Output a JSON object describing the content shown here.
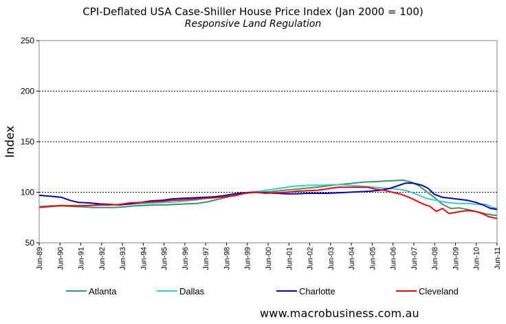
{
  "chart_data": {
    "type": "line",
    "title": "CPI-Deflated USA Case-Shiller House Price Index (Jan 2000 = 100)",
    "subtitle": "Responsive Land Regulation",
    "ylabel": "Index",
    "xlabel": "",
    "ylim": [
      50,
      250
    ],
    "yticks": [
      50,
      100,
      150,
      200,
      250
    ],
    "xlim": [
      1989.417,
      2011.417
    ],
    "xtick_labels": [
      "Jun-89",
      "Jun-90",
      "Jun-91",
      "Jun-92",
      "Jun-93",
      "Jun-94",
      "Jun-95",
      "Jun-96",
      "Jun-97",
      "Jun-98",
      "Jun-99",
      "Jun-00",
      "Jun-01",
      "Jun-02",
      "Jun-03",
      "Jun-04",
      "Jun-05",
      "Jun-06",
      "Jun-07",
      "Jun-08",
      "Jun-09",
      "Jun-10",
      "Jun-11"
    ],
    "grid": "horizontal dotted at 100, 150, 200",
    "legend_position": "bottom",
    "series": [
      {
        "name": "Atlanta",
        "color": "#339966",
        "points": [
          [
            1989.42,
            86
          ],
          [
            1990.0,
            86.5
          ],
          [
            1990.5,
            86.5
          ],
          [
            1991.0,
            86
          ],
          [
            1991.5,
            85.5
          ],
          [
            1992.0,
            85
          ],
          [
            1992.5,
            85
          ],
          [
            1993.0,
            85
          ],
          [
            1993.5,
            85.5
          ],
          [
            1994.0,
            86.5
          ],
          [
            1994.5,
            87
          ],
          [
            1995.0,
            87.5
          ],
          [
            1995.5,
            87.5
          ],
          [
            1996.0,
            88
          ],
          [
            1996.5,
            88.5
          ],
          [
            1997.0,
            89
          ],
          [
            1997.5,
            90.5
          ],
          [
            1998.0,
            93
          ],
          [
            1998.5,
            95.5
          ],
          [
            1999.0,
            98
          ],
          [
            1999.5,
            99.5
          ],
          [
            2000.0,
            100
          ],
          [
            2000.5,
            100.5
          ],
          [
            2001.0,
            101.5
          ],
          [
            2001.5,
            102.5
          ],
          [
            2002.0,
            103.5
          ],
          [
            2002.5,
            104.5
          ],
          [
            2003.0,
            105.5
          ],
          [
            2003.5,
            107
          ],
          [
            2004.0,
            108
          ],
          [
            2004.5,
            109
          ],
          [
            2005.0,
            110
          ],
          [
            2005.5,
            110.5
          ],
          [
            2006.0,
            111
          ],
          [
            2006.5,
            111.5
          ],
          [
            2006.9,
            112
          ],
          [
            2007.3,
            110
          ],
          [
            2007.7,
            106
          ],
          [
            2008.0,
            101
          ],
          [
            2008.4,
            95
          ],
          [
            2008.8,
            88
          ],
          [
            2009.2,
            84
          ],
          [
            2009.6,
            84.5
          ],
          [
            2010.0,
            83
          ],
          [
            2010.4,
            81
          ],
          [
            2010.8,
            79
          ],
          [
            2011.2,
            77.5
          ],
          [
            2011.42,
            77
          ]
        ]
      },
      {
        "name": "Dallas",
        "color": "#33cccc",
        "points": [
          [
            1989.42,
            85.5
          ],
          [
            1990.0,
            86
          ],
          [
            1990.5,
            86.5
          ],
          [
            1991.0,
            87
          ],
          [
            1991.5,
            86.5
          ],
          [
            1992.0,
            87
          ],
          [
            1992.5,
            87.5
          ],
          [
            1993.0,
            87.5
          ],
          [
            1993.5,
            88
          ],
          [
            1994.0,
            88.5
          ],
          [
            1994.5,
            89
          ],
          [
            1995.0,
            89.5
          ],
          [
            1995.5,
            90
          ],
          [
            1996.0,
            90.5
          ],
          [
            1996.5,
            91.5
          ],
          [
            1997.0,
            92.5
          ],
          [
            1997.5,
            94
          ],
          [
            1998.0,
            96
          ],
          [
            1998.5,
            97.5
          ],
          [
            1999.0,
            99
          ],
          [
            1999.5,
            100
          ],
          [
            2000.0,
            101
          ],
          [
            2000.5,
            102.5
          ],
          [
            2001.0,
            104
          ],
          [
            2001.5,
            105.5
          ],
          [
            2002.0,
            106.5
          ],
          [
            2002.5,
            107
          ],
          [
            2003.0,
            107
          ],
          [
            2003.5,
            107.5
          ],
          [
            2004.0,
            107.5
          ],
          [
            2004.5,
            106.5
          ],
          [
            2005.0,
            106
          ],
          [
            2005.5,
            105
          ],
          [
            2006.0,
            104
          ],
          [
            2006.5,
            103.5
          ],
          [
            2007.0,
            102
          ],
          [
            2007.5,
            98.5
          ],
          [
            2008.0,
            94
          ],
          [
            2008.5,
            92
          ],
          [
            2009.0,
            90
          ],
          [
            2009.5,
            89
          ],
          [
            2010.0,
            89
          ],
          [
            2010.5,
            88
          ],
          [
            2010.9,
            88
          ],
          [
            2011.2,
            85
          ],
          [
            2011.42,
            84
          ]
        ]
      },
      {
        "name": "Charlotte",
        "color": "#0000cc",
        "points": [
          [
            1989.42,
            97
          ],
          [
            1990.0,
            96
          ],
          [
            1990.5,
            95
          ],
          [
            1990.9,
            92
          ],
          [
            1991.3,
            90
          ],
          [
            1991.8,
            89.5
          ],
          [
            1992.3,
            88.5
          ],
          [
            1992.8,
            88
          ],
          [
            1993.3,
            87.5
          ],
          [
            1993.8,
            88.5
          ],
          [
            1994.3,
            90
          ],
          [
            1994.8,
            91.5
          ],
          [
            1995.3,
            92
          ],
          [
            1995.8,
            93.5
          ],
          [
            1996.3,
            94
          ],
          [
            1996.8,
            94.5
          ],
          [
            1997.3,
            95
          ],
          [
            1997.8,
            95.5
          ],
          [
            1998.3,
            96.5
          ],
          [
            1998.8,
            98.5
          ],
          [
            1999.3,
            99.5
          ],
          [
            1999.8,
            100
          ],
          [
            2000.3,
            99.5
          ],
          [
            2000.8,
            99
          ],
          [
            2001.3,
            98.5
          ],
          [
            2001.8,
            98.5
          ],
          [
            2002.3,
            99
          ],
          [
            2002.8,
            99
          ],
          [
            2003.3,
            99
          ],
          [
            2003.8,
            99.5
          ],
          [
            2004.3,
            100
          ],
          [
            2004.8,
            100.5
          ],
          [
            2005.3,
            101
          ],
          [
            2005.8,
            102
          ],
          [
            2006.3,
            104
          ],
          [
            2006.8,
            107.5
          ],
          [
            2007.0,
            109
          ],
          [
            2007.4,
            109
          ],
          [
            2007.8,
            107
          ],
          [
            2008.1,
            104
          ],
          [
            2008.4,
            98
          ],
          [
            2008.8,
            95
          ],
          [
            2009.2,
            94
          ],
          [
            2009.6,
            93
          ],
          [
            2010.0,
            92
          ],
          [
            2010.4,
            90
          ],
          [
            2010.8,
            87
          ],
          [
            2011.1,
            84
          ],
          [
            2011.42,
            83
          ]
        ]
      },
      {
        "name": "Cleveland",
        "color": "#ff0000",
        "points": [
          [
            1989.42,
            85
          ],
          [
            1990.0,
            86
          ],
          [
            1990.5,
            87
          ],
          [
            1990.8,
            86.5
          ],
          [
            1991.3,
            86.5
          ],
          [
            1991.8,
            87
          ],
          [
            1992.3,
            87.5
          ],
          [
            1992.8,
            87.5
          ],
          [
            1993.3,
            88
          ],
          [
            1993.8,
            89.5
          ],
          [
            1994.3,
            90
          ],
          [
            1994.8,
            90.5
          ],
          [
            1995.3,
            91
          ],
          [
            1995.8,
            92
          ],
          [
            1996.3,
            92.5
          ],
          [
            1996.8,
            93
          ],
          [
            1997.3,
            94
          ],
          [
            1997.8,
            94.5
          ],
          [
            1998.3,
            95.5
          ],
          [
            1998.8,
            96.5
          ],
          [
            1999.3,
            99
          ],
          [
            1999.8,
            100
          ],
          [
            2000.3,
            99
          ],
          [
            2000.8,
            99.5
          ],
          [
            2001.3,
            100
          ],
          [
            2001.8,
            101
          ],
          [
            2002.3,
            101.5
          ],
          [
            2002.8,
            102
          ],
          [
            2003.3,
            103.5
          ],
          [
            2003.8,
            105
          ],
          [
            2004.3,
            105
          ],
          [
            2004.8,
            105
          ],
          [
            2005.2,
            105
          ],
          [
            2005.6,
            103
          ],
          [
            2006.0,
            102
          ],
          [
            2006.4,
            100
          ],
          [
            2006.8,
            98
          ],
          [
            2007.2,
            95
          ],
          [
            2007.6,
            91
          ],
          [
            2007.9,
            88
          ],
          [
            2008.2,
            86
          ],
          [
            2008.5,
            81
          ],
          [
            2008.8,
            84
          ],
          [
            2009.1,
            79
          ],
          [
            2009.4,
            80
          ],
          [
            2009.7,
            81
          ],
          [
            2010.0,
            82
          ],
          [
            2010.4,
            81
          ],
          [
            2010.7,
            79
          ],
          [
            2011.0,
            76
          ],
          [
            2011.2,
            75
          ],
          [
            2011.42,
            74
          ]
        ]
      }
    ]
  },
  "footer": {
    "source": "www.macrobusiness.com.au"
  }
}
